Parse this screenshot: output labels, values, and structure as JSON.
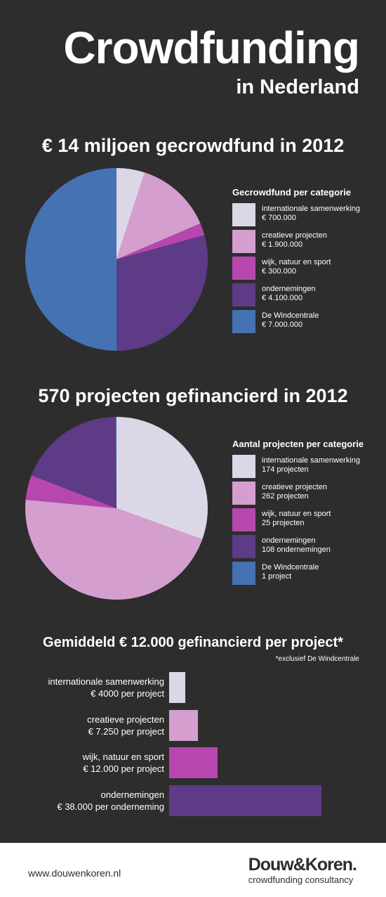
{
  "header": {
    "title": "Crowdfunding",
    "subtitle": "in Nederland"
  },
  "colors": [
    "#dcd7e6",
    "#d49fcf",
    "#b747af",
    "#5d3b87",
    "#4472b3"
  ],
  "chart_data": [
    {
      "type": "pie",
      "title": "€ 14 miljoen gecrowdfund in 2012",
      "legend_title": "Gecrowdfund per categorie",
      "series": [
        {
          "name": "internationale samenwerking",
          "label": "€ 700.000",
          "value": 700000
        },
        {
          "name": "creatieve projecten",
          "label": "€ 1.900.000",
          "value": 1900000
        },
        {
          "name": "wijk, natuur en sport",
          "label": "€ 300.000",
          "value": 300000
        },
        {
          "name": "ondernemingen",
          "label": "€ 4.100.000",
          "value": 4100000
        },
        {
          "name": "De Windcentrale",
          "label": "€ 7.000.000",
          "value": 7000000
        }
      ]
    },
    {
      "type": "pie",
      "title": "570 projecten gefinancierd in 2012",
      "legend_title": "Aantal projecten per categorie",
      "series": [
        {
          "name": "internationale samenwerking",
          "label": "174 projecten",
          "value": 174
        },
        {
          "name": "creatieve projecten",
          "label": "262 projecten",
          "value": 262
        },
        {
          "name": "wijk, natuur en sport",
          "label": "25 projecten",
          "value": 25
        },
        {
          "name": "ondernemingen",
          "label": "108 ondernemingen",
          "value": 108
        },
        {
          "name": "De Windcentrale",
          "label": "1 project",
          "value": 1
        }
      ]
    },
    {
      "type": "bar",
      "title": "Gemiddeld € 12.000 gefinancierd per project*",
      "note": "*exclusief De Windcentrale",
      "series": [
        {
          "name": "internationale samenwerking",
          "label": "€ 4000 per project",
          "value": 4000
        },
        {
          "name": "creatieve projecten",
          "label": "€ 7.250 per project",
          "value": 7250
        },
        {
          "name": "wijk, natuur en sport",
          "label": "€ 12.000 per project",
          "value": 12000
        },
        {
          "name": "ondernemingen",
          "label": "€ 38.000 per onderneming",
          "value": 38000
        }
      ]
    }
  ],
  "footer": {
    "url": "www.douwenkoren.nl",
    "logo_name": "Douw&Koren.",
    "logo_tagline": "crowdfunding consultancy"
  }
}
